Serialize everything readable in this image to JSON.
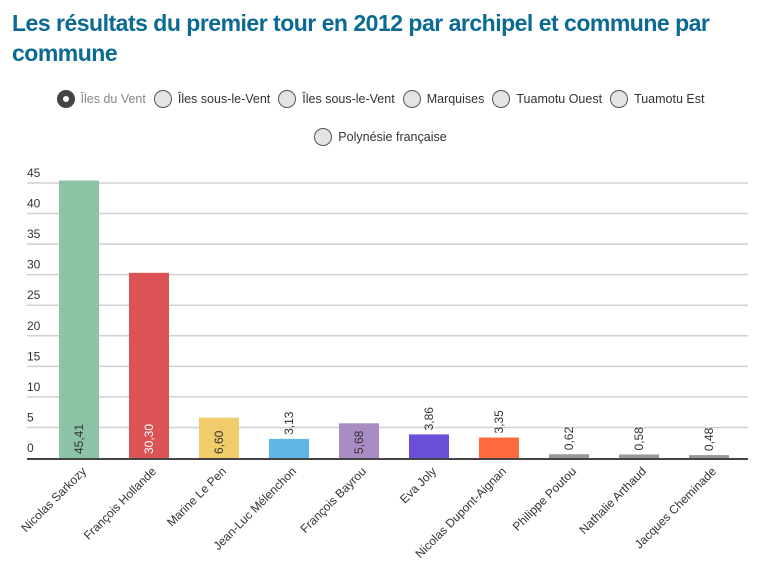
{
  "title": "Les résultats du premier tour en 2012 par archipel et commune par commune",
  "filters": [
    {
      "label": "Îles du Vent",
      "selected": true
    },
    {
      "label": "Îles sous-le-Vent",
      "selected": false
    },
    {
      "label": "Îles sous-le-Vent",
      "selected": false
    },
    {
      "label": "Marquises",
      "selected": false
    },
    {
      "label": "Tuamotu Ouest",
      "selected": false
    },
    {
      "label": "Tuamotu Est",
      "selected": false
    },
    {
      "label": "Polynésie française",
      "selected": false
    }
  ],
  "chart_data": {
    "type": "bar",
    "categories": [
      "Nicolas Sarkozy",
      "François Hollande",
      "Marine Le Pen",
      "Jean-Luc Mélenchon",
      "François Bayrou",
      "Eva Joly",
      "Nicolas Dupont-Aignan",
      "Philippe Poutou",
      "Nathalie Arthaud",
      "Jacques Cheminade"
    ],
    "values": [
      45.41,
      30.3,
      6.6,
      3.13,
      5.68,
      3.86,
      3.35,
      0.62,
      0.58,
      0.48
    ],
    "value_labels": [
      "45,41",
      "30,30",
      "6,60",
      "3,13",
      "5,68",
      "3,86",
      "3,35",
      "0,62",
      "0,58",
      "0,48"
    ],
    "colors": [
      "#8ec4a6",
      "#dc5356",
      "#f0cc6a",
      "#5fb5e3",
      "#a98cc4",
      "#6b4fdb",
      "#ff6a3d",
      "#999999",
      "#999999",
      "#999999"
    ],
    "label_colors": [
      "#333333",
      "#ffffff",
      "#333333",
      "#333333",
      "#333333",
      "#333333",
      "#333333",
      "#333333",
      "#333333",
      "#333333"
    ],
    "yticks": [
      0,
      5,
      10,
      15,
      20,
      25,
      30,
      35,
      40,
      45
    ],
    "ylim": [
      0,
      45
    ],
    "grid": true,
    "title": "",
    "xlabel": "",
    "ylabel": ""
  }
}
